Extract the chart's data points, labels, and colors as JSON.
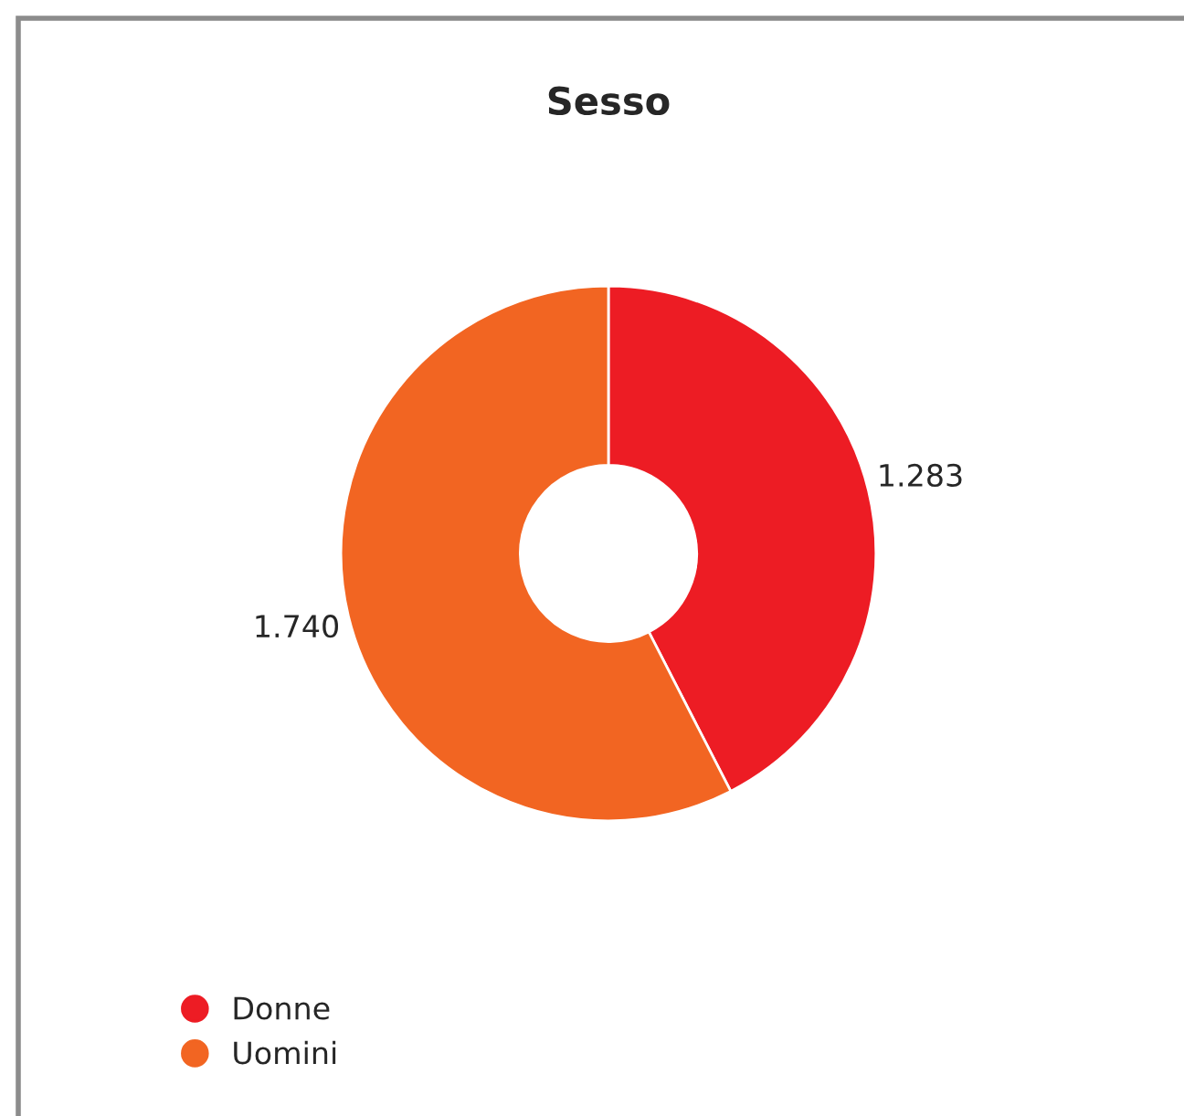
{
  "chart_data": {
    "type": "donut",
    "title": "Sesso",
    "categories": [
      "Donne",
      "Uomini"
    ],
    "values": [
      1283,
      1740
    ],
    "value_labels": [
      "1.283",
      "1.740"
    ],
    "colors": [
      "#ed1c24",
      "#f26522"
    ],
    "legend": "bottom left"
  }
}
